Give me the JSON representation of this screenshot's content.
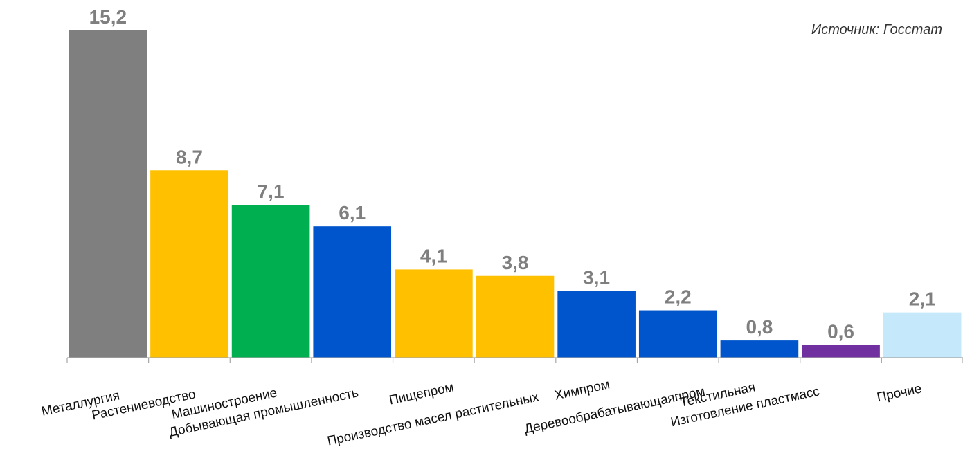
{
  "source": "Источник: Госстат",
  "chart_data": {
    "type": "bar",
    "categories": [
      "Металлургия",
      "Растениеводство",
      "Машиностроение",
      "Добывающая промышленность",
      "Пищепром",
      "Производство масел растительных",
      "Химпром",
      "Деревообрабатывающаяпром",
      "Текстильная",
      "Изготовление пластмасс",
      "Прочие"
    ],
    "values": [
      15.2,
      8.7,
      7.1,
      6.1,
      4.1,
      3.8,
      3.1,
      2.2,
      0.8,
      0.6,
      2.1
    ],
    "value_labels": [
      "15,2",
      "8,7",
      "7,1",
      "6,1",
      "4,1",
      "3,8",
      "3,1",
      "2,2",
      "0,8",
      "0,6",
      "2,1"
    ],
    "colors": [
      "#7f7f7f",
      "#ffc000",
      "#00b050",
      "#0055cc",
      "#ffc000",
      "#ffc000",
      "#0055cc",
      "#0055cc",
      "#0055cc",
      "#7030a0",
      "#c5e8fa"
    ],
    "ylim": [
      0,
      15.2
    ],
    "grid": false,
    "legend": "none"
  }
}
